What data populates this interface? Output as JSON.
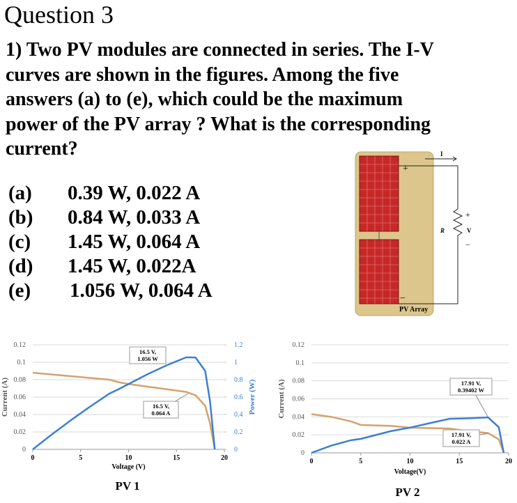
{
  "header": {
    "title": "Question 3"
  },
  "question": {
    "lines": [
      "1) Two PV modules are connected in series. The I-V",
      "curves are shown in the figures. Among the five",
      "answers (a) to (e), which could be the maximum",
      "power of the PV array ? What is the corresponding",
      "current?"
    ]
  },
  "options": [
    {
      "label": "(a)",
      "answer": "0.39 W, 0.022 A"
    },
    {
      "label": "(b)",
      "answer": "0.84 W, 0.033 A"
    },
    {
      "label": "(c)",
      "answer": "1.45 W, 0.064 A"
    },
    {
      "label": "(d)",
      "answer": "1.45 W, 0.022A"
    },
    {
      "label": "(e)",
      "answer": "1.056 W, 0.064 A"
    }
  ],
  "diagram": {
    "plus": "+",
    "minus": "−",
    "current": "I",
    "resistor": "R",
    "v_plus": "+",
    "voltage": "V",
    "v_minus": "−",
    "caption": "PV Array"
  },
  "chart_data": [
    {
      "type": "line",
      "caption": "PV 1",
      "x_label": "Voltage (V)",
      "y_label": "Current (A)",
      "y2_label": "Power (W)",
      "x": [
        0,
        2,
        4,
        6,
        8,
        9,
        10,
        12,
        14,
        16,
        16.5,
        17,
        18,
        18.5,
        19
      ],
      "series": [
        {
          "name": "Current",
          "color": "#d3a36b",
          "values": [
            0.088,
            0.086,
            0.084,
            0.082,
            0.08,
            0.077,
            0.075,
            0.072,
            0.069,
            0.066,
            0.064,
            0.062,
            0.05,
            0.03,
            0
          ]
        },
        {
          "name": "Power",
          "color": "#3a7fd5",
          "axis": "y2",
          "values": [
            0,
            0.172,
            0.336,
            0.492,
            0.64,
            0.693,
            0.75,
            0.864,
            0.966,
            1.056,
            1.056,
            1.054,
            0.9,
            0.555,
            0
          ]
        }
      ],
      "xlim": [
        0,
        20
      ],
      "xticks": [
        0,
        5,
        10,
        15,
        20
      ],
      "ylim": [
        0,
        0.12
      ],
      "yticks": [
        0,
        0.02,
        0.04,
        0.06,
        0.08,
        0.1,
        0.12
      ],
      "y2lim": [
        0,
        1.2
      ],
      "y2ticks": [
        0,
        0.2,
        0.4,
        0.6,
        0.8,
        1,
        1.2
      ],
      "grid": true,
      "annotations": [
        {
          "lines": [
            "16.5 V,",
            "1.056 W"
          ]
        },
        {
          "lines": [
            "16.5 V,",
            "0.064 A"
          ]
        }
      ]
    },
    {
      "type": "line",
      "caption": "PV 2",
      "x_label": "Voltage(V)",
      "y_label": "Current (A)",
      "x": [
        0,
        2,
        4,
        5,
        8,
        10,
        12,
        14,
        16,
        17.91,
        19,
        19.5
      ],
      "series": [
        {
          "name": "Current",
          "color": "#d3a36b",
          "values": [
            0.043,
            0.04,
            0.035,
            0.031,
            0.03,
            0.028,
            0.0275,
            0.027,
            0.024,
            0.022,
            0.015,
            0
          ]
        },
        {
          "name": "Power",
          "color": "#3a7fd5",
          "axis": "y2",
          "values": [
            0,
            0.08,
            0.14,
            0.155,
            0.24,
            0.28,
            0.33,
            0.378,
            0.384,
            0.394,
            0.285,
            0
          ]
        }
      ],
      "xlim": [
        0,
        20
      ],
      "xticks": [
        0,
        5,
        10,
        15,
        20
      ],
      "ylim": [
        0,
        0.12
      ],
      "yticks": [
        0,
        0.02,
        0.04,
        0.06,
        0.08,
        0.1,
        0.12
      ],
      "y2lim": [
        0,
        1.2
      ],
      "grid": true,
      "annotations": [
        {
          "lines": [
            "17.91 V,",
            "0.39402 W"
          ]
        },
        {
          "lines": [
            "17.91 V,",
            "0.022 A"
          ]
        }
      ]
    }
  ]
}
